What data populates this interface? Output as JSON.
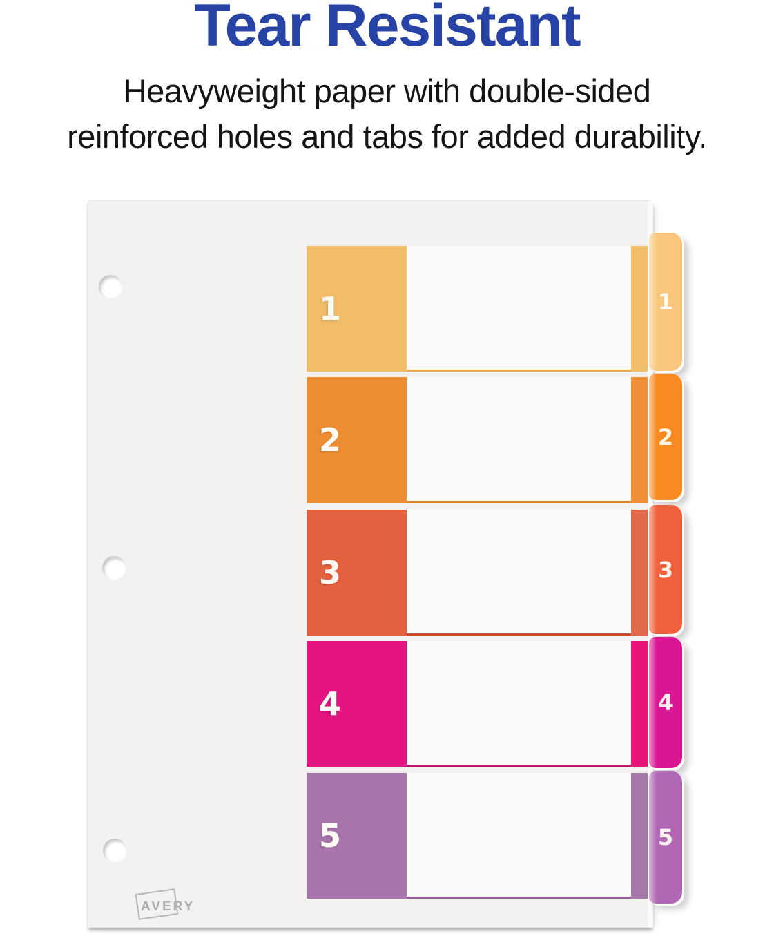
{
  "header": {
    "title": "Tear Resistant",
    "title_color": "#2643A5",
    "subtitle_line1": "Heavyweight paper with double-sided",
    "subtitle_line2": "reinforced holes and tabs for added durability.",
    "subtitle_color": "#141414"
  },
  "divider_sheet": {
    "brand": "AVERY",
    "sheet_color": "#F3F2F1",
    "hole_count": 3,
    "sections": [
      {
        "label": "1",
        "block_color": "#F2BD68",
        "strip_color": "#F2BD68",
        "tab_color": "#F8C77D",
        "rule_color": "#E8A94E"
      },
      {
        "label": "2",
        "block_color": "#EE8C33",
        "strip_color": "#EF9038",
        "tab_color": "#F78B22",
        "rule_color": "#DE8226"
      },
      {
        "label": "3",
        "block_color": "#E4613F",
        "strip_color": "#E06A4B",
        "tab_color": "#F0603C",
        "rule_color": "#CE4A2D"
      },
      {
        "label": "4",
        "block_color": "#E41480",
        "strip_color": "#E81478",
        "tab_color": "#DA1693",
        "rule_color": "#C91371"
      },
      {
        "label": "5",
        "block_color": "#A874AC",
        "strip_color": "#A678A9",
        "tab_color": "#B168B4",
        "rule_color": "#97639B"
      }
    ]
  }
}
